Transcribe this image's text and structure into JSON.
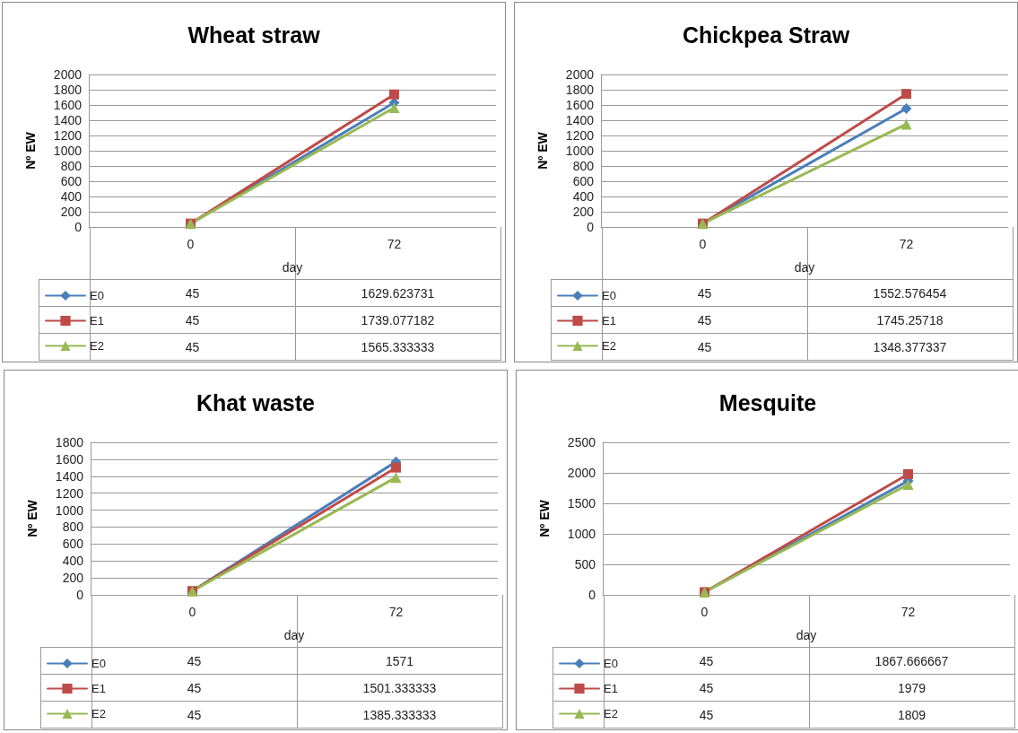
{
  "chart_data": [
    {
      "type": "line",
      "title": "Wheat straw",
      "xlabel": "day",
      "ylabel": "Nº EW",
      "categories": [
        "0",
        "72"
      ],
      "ylim": [
        0,
        2000
      ],
      "yticks": [
        0,
        200,
        400,
        600,
        800,
        1000,
        1200,
        1400,
        1600,
        1800,
        2000
      ],
      "grid": "y",
      "legend": "bottom left",
      "data_labels": true,
      "series": [
        {
          "name": "E0",
          "color": "#4a7ebb",
          "marker": "diamond",
          "values": [
            45,
            1629.623731
          ]
        },
        {
          "name": "E1",
          "color": "#be4b48",
          "marker": "square",
          "values": [
            45,
            1739.077182
          ]
        },
        {
          "name": "E2",
          "color": "#98b954",
          "marker": "triangle",
          "values": [
            45,
            1565.333333
          ]
        }
      ]
    },
    {
      "type": "line",
      "title": "Chickpea Straw",
      "xlabel": "day",
      "ylabel": "Nº EW",
      "categories": [
        "0",
        "72"
      ],
      "ylim": [
        0,
        2000
      ],
      "yticks": [
        0,
        200,
        400,
        600,
        800,
        1000,
        1200,
        1400,
        1600,
        1800,
        2000
      ],
      "grid": "y",
      "legend": "bottom left",
      "data_labels": true,
      "series": [
        {
          "name": "E0",
          "color": "#4a7ebb",
          "marker": "diamond",
          "values": [
            45,
            1552.576454
          ]
        },
        {
          "name": "E1",
          "color": "#be4b48",
          "marker": "square",
          "values": [
            45,
            1745.25718
          ]
        },
        {
          "name": "E2",
          "color": "#98b954",
          "marker": "triangle",
          "values": [
            45,
            1348.377337
          ]
        }
      ]
    },
    {
      "type": "line",
      "title": "Khat waste",
      "xlabel": "day",
      "ylabel": "Nº EW",
      "categories": [
        "0",
        "72"
      ],
      "ylim": [
        0,
        1800
      ],
      "yticks": [
        0,
        200,
        400,
        600,
        800,
        1000,
        1200,
        1400,
        1600,
        1800
      ],
      "grid": "y",
      "legend": "bottom left",
      "data_labels": true,
      "series": [
        {
          "name": "E0",
          "color": "#4a7ebb",
          "marker": "diamond",
          "values": [
            45,
            1571
          ]
        },
        {
          "name": "E1",
          "color": "#be4b48",
          "marker": "square",
          "values": [
            45,
            1501.333333
          ]
        },
        {
          "name": "E2",
          "color": "#98b954",
          "marker": "triangle",
          "values": [
            45,
            1385.333333
          ]
        }
      ]
    },
    {
      "type": "line",
      "title": "Mesquite",
      "xlabel": "day",
      "ylabel": "Nº EW",
      "categories": [
        "0",
        "72"
      ],
      "ylim": [
        0,
        2500
      ],
      "yticks": [
        0,
        500,
        1000,
        1500,
        2000,
        2500
      ],
      "grid": "y",
      "legend": "bottom left",
      "data_labels": true,
      "series": [
        {
          "name": "E0",
          "color": "#4a7ebb",
          "marker": "diamond",
          "values": [
            45,
            1867.666667
          ]
        },
        {
          "name": "E1",
          "color": "#be4b48",
          "marker": "square",
          "values": [
            45,
            1979
          ]
        },
        {
          "name": "E2",
          "color": "#98b954",
          "marker": "triangle",
          "values": [
            45,
            1809
          ]
        }
      ]
    }
  ]
}
